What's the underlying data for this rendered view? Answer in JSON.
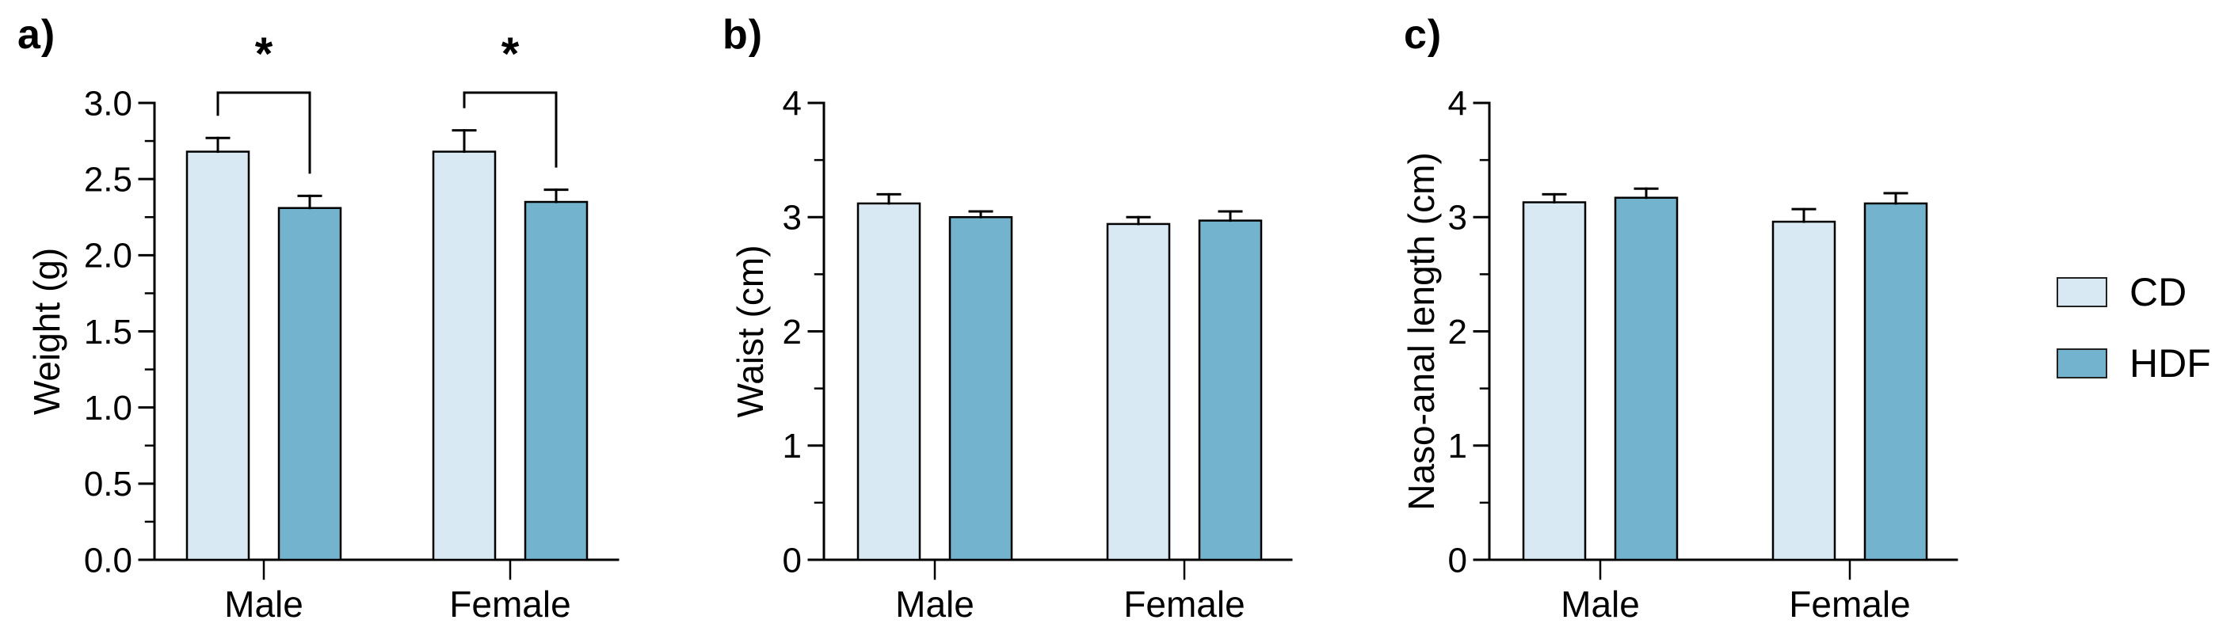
{
  "figure_title": "",
  "chart_data": [
    {
      "type": "bar",
      "panel_label": "a)",
      "ylabel": "Weight (g)",
      "xlabel": "",
      "ylim": [
        0,
        3.0
      ],
      "ytick_step": 0.5,
      "yminor_step": 0.25,
      "ytick_labels": [
        "0.0",
        "0.5",
        "1.0",
        "1.5",
        "2.0",
        "2.5",
        "3.0"
      ],
      "categories": [
        "Male",
        "Female"
      ],
      "series": [
        {
          "name": "CD",
          "color": "#d8e9f4",
          "values": [
            2.68,
            2.68
          ],
          "errors": [
            0.09,
            0.14
          ]
        },
        {
          "name": "HDF",
          "color": "#73b3cd",
          "values": [
            2.31,
            2.35
          ],
          "errors": [
            0.08,
            0.08
          ]
        }
      ],
      "significance": [
        {
          "category": "Male",
          "label": "*"
        },
        {
          "category": "Female",
          "label": "*"
        }
      ],
      "grid": false,
      "legend_position": "right-outside"
    },
    {
      "type": "bar",
      "panel_label": "b)",
      "ylabel": "Waist (cm)",
      "xlabel": "",
      "ylim": [
        0,
        4
      ],
      "ytick_step": 1,
      "yminor_step": 0.5,
      "ytick_labels": [
        "0",
        "1",
        "2",
        "3",
        "4"
      ],
      "categories": [
        "Male",
        "Female"
      ],
      "series": [
        {
          "name": "CD",
          "color": "#d8e9f4",
          "values": [
            3.12,
            2.94
          ],
          "errors": [
            0.08,
            0.06
          ]
        },
        {
          "name": "HDF",
          "color": "#73b3cd",
          "values": [
            3.0,
            2.97
          ],
          "errors": [
            0.05,
            0.08
          ]
        }
      ],
      "significance": [],
      "grid": false,
      "legend_position": "right-outside"
    },
    {
      "type": "bar",
      "panel_label": "c)",
      "ylabel": "Naso-anal length (cm)",
      "xlabel": "",
      "ylim": [
        0,
        4
      ],
      "ytick_step": 1,
      "yminor_step": 0.5,
      "ytick_labels": [
        "0",
        "1",
        "2",
        "3",
        "4"
      ],
      "categories": [
        "Male",
        "Female"
      ],
      "series": [
        {
          "name": "CD",
          "color": "#d8e9f4",
          "values": [
            3.13,
            2.96
          ],
          "errors": [
            0.07,
            0.11
          ]
        },
        {
          "name": "HDF",
          "color": "#73b3cd",
          "values": [
            3.17,
            3.12
          ],
          "errors": [
            0.08,
            0.09
          ]
        }
      ],
      "significance": [],
      "grid": false,
      "legend_position": "right-outside"
    }
  ],
  "legend": {
    "items": [
      {
        "label": "CD",
        "color": "#d8e9f4"
      },
      {
        "label": "HDF",
        "color": "#73b3cd"
      }
    ]
  },
  "colors": {
    "cd_fill": "#d8e9f4",
    "hdf_fill": "#73b3cd",
    "outline": "#000000",
    "background": "#ffffff"
  }
}
